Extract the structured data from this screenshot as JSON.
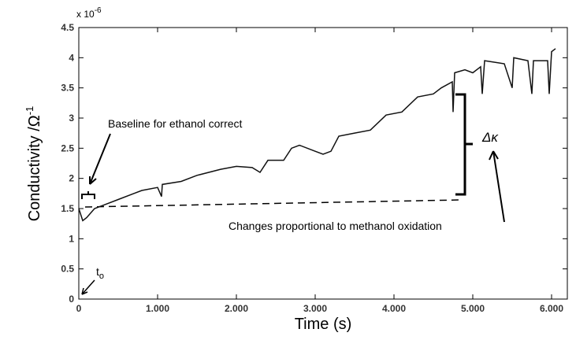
{
  "chart_data": {
    "type": "line",
    "xlabel": "Time (s)",
    "ylabel": "Conductivity /Ω",
    "ylabel_sup": "-1",
    "y_multiplier": "x 10",
    "y_multiplier_exp": "-6",
    "x": [
      0,
      50,
      100,
      200,
      300,
      500,
      700,
      800,
      1000,
      1050,
      1060,
      1300,
      1500,
      1800,
      2000,
      2200,
      2300,
      2400,
      2600,
      2700,
      2800,
      3000,
      3100,
      3200,
      3300,
      3500,
      3700,
      3900,
      4100,
      4300,
      4500,
      4600,
      4740,
      4750,
      4770,
      4900,
      5000,
      5100,
      5120,
      5150,
      5400,
      5500,
      5520,
      5700,
      5750,
      5770,
      5950,
      5970,
      6000,
      6050
    ],
    "series": [
      {
        "name": "Conductivity",
        "color": "#111111",
        "values": [
          1.5,
          1.3,
          1.35,
          1.5,
          1.55,
          1.65,
          1.75,
          1.8,
          1.85,
          1.7,
          1.9,
          1.95,
          2.05,
          2.15,
          2.2,
          2.18,
          2.1,
          2.3,
          2.3,
          2.5,
          2.55,
          2.45,
          2.4,
          2.45,
          2.7,
          2.75,
          2.8,
          3.05,
          3.1,
          3.35,
          3.4,
          3.5,
          3.6,
          3.1,
          3.75,
          3.8,
          3.75,
          3.85,
          3.4,
          3.95,
          3.9,
          3.5,
          4.0,
          3.95,
          3.4,
          3.95,
          3.95,
          3.4,
          4.1,
          4.15
        ]
      }
    ],
    "xlim": [
      0,
      6200
    ],
    "ylim": [
      0,
      4.5
    ],
    "xticks": [
      0,
      {
        "value": 1000,
        "label": "1.000"
      },
      {
        "value": 2000,
        "label": "2.000"
      },
      {
        "value": 3000,
        "label": "3.000"
      },
      {
        "value": 4000,
        "label": "4.000"
      },
      {
        "value": 5000,
        "label": "5.000"
      },
      {
        "value": 6000,
        "label": "6.000"
      }
    ],
    "yticks": [
      0,
      0.5,
      1,
      1.5,
      2,
      2.5,
      3,
      3.5,
      4,
      4.5
    ],
    "annotations": {
      "baseline": "Baseline for ethanol correct",
      "changes": "Changes proportional to methanol oxidation",
      "delta": "Δκ",
      "t0": "t",
      "t0_sub": "o"
    }
  }
}
